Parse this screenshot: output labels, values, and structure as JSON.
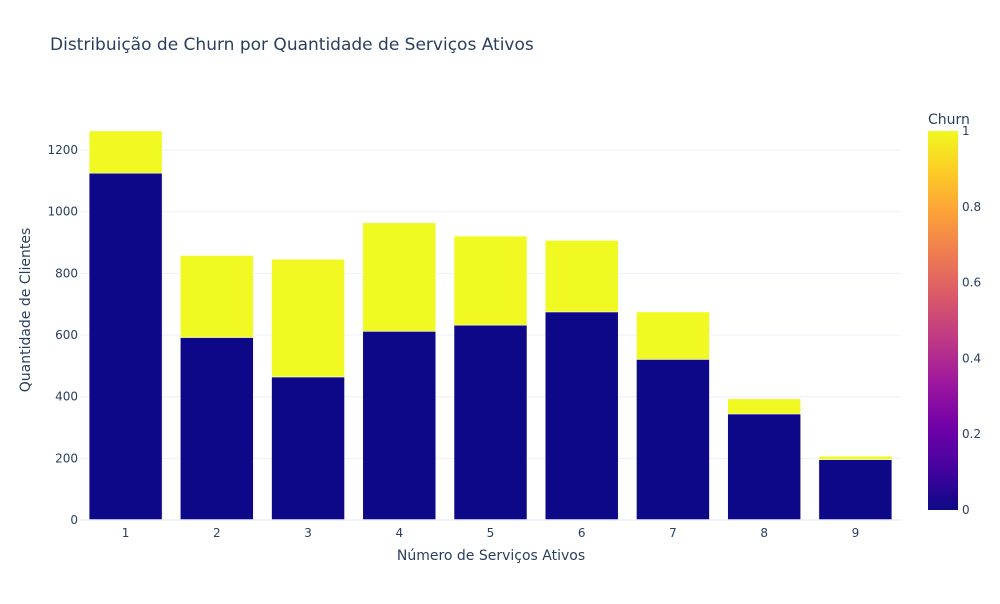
{
  "chart_data": {
    "type": "bar",
    "stacked": true,
    "title": "Distribuição de Churn por Quantidade de Serviços Ativos",
    "xlabel": "Número de Serviços Ativos",
    "ylabel": "Quantidade de Clientes",
    "categories": [
      "1",
      "2",
      "3",
      "4",
      "5",
      "6",
      "7",
      "8",
      "9"
    ],
    "ylim": [
      0,
      1330
    ],
    "yticks": [
      0,
      200,
      400,
      600,
      800,
      1000,
      1200
    ],
    "grid": true,
    "series": [
      {
        "churn": 0,
        "color": "#0d0887",
        "values": [
          1125,
          592,
          464,
          612,
          632,
          675,
          521,
          344,
          196
        ]
      },
      {
        "churn": 1,
        "color": "#f0f921",
        "values": [
          137,
          266,
          382,
          352,
          289,
          232,
          154,
          49,
          11
        ]
      }
    ],
    "colorbar": {
      "title": "Churn",
      "ticks": [
        "0",
        "0.2",
        "0.4",
        "0.6",
        "0.8",
        "1"
      ],
      "colorscale": [
        "#0d0887",
        "#46039f",
        "#7201a8",
        "#9c179e",
        "#bd3786",
        "#d8576b",
        "#ed7953",
        "#fb9f3a",
        "#fdca26",
        "#f0f921"
      ]
    }
  }
}
